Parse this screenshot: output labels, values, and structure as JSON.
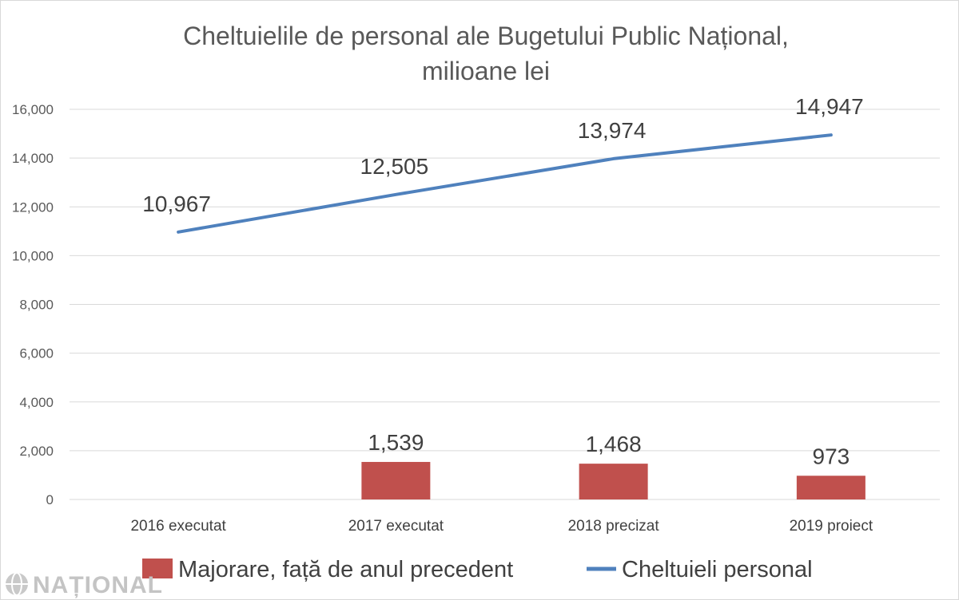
{
  "chart_data": {
    "type": "bar+line",
    "title_lines": [
      "Cheltuielile de personal ale Bugetului Public Național,",
      "milioane lei"
    ],
    "categories": [
      "2016 executat",
      "2017 executat",
      "2018 precizat",
      "2019 proiect"
    ],
    "series": [
      {
        "name": "Majorare, față de anul precedent",
        "type": "bar",
        "color": "#c0504d",
        "values": [
          null,
          1539,
          1468,
          973
        ],
        "labels": [
          "",
          "1,539",
          "1,468",
          "973"
        ]
      },
      {
        "name": "Cheltuieli personal",
        "type": "line",
        "color": "#4f81bd",
        "values": [
          10967,
          12505,
          13974,
          14947
        ],
        "labels": [
          "10,967",
          "12,505",
          "13,974",
          "14,947"
        ]
      }
    ],
    "ylim": [
      0,
      16000
    ],
    "yticks": [
      0,
      2000,
      4000,
      6000,
      8000,
      10000,
      12000,
      14000,
      16000
    ],
    "ytick_labels": [
      "0",
      "2,000",
      "4,000",
      "6,000",
      "8,000",
      "10,000",
      "12,000",
      "14,000",
      "16,000"
    ],
    "grid": true,
    "legend_position": "bottom"
  },
  "watermark": {
    "text": "NAȚIONAL",
    "icon": "globe-logo-icon"
  }
}
